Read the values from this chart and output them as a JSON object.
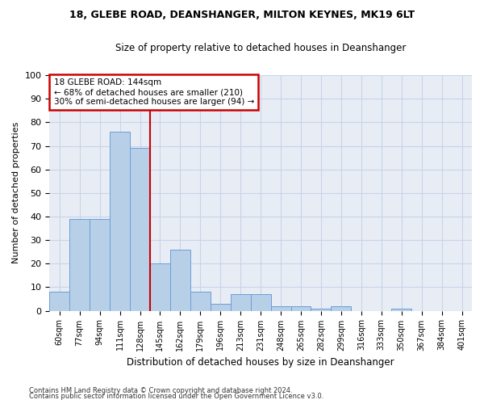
{
  "title1": "18, GLEBE ROAD, DEANSHANGER, MILTON KEYNES, MK19 6LT",
  "title2": "Size of property relative to detached houses in Deanshanger",
  "xlabel": "Distribution of detached houses by size in Deanshanger",
  "ylabel": "Number of detached properties",
  "categories": [
    "60sqm",
    "77sqm",
    "94sqm",
    "111sqm",
    "128sqm",
    "145sqm",
    "162sqm",
    "179sqm",
    "196sqm",
    "213sqm",
    "231sqm",
    "248sqm",
    "265sqm",
    "282sqm",
    "299sqm",
    "316sqm",
    "333sqm",
    "350sqm",
    "367sqm",
    "384sqm",
    "401sqm"
  ],
  "values": [
    8,
    39,
    39,
    76,
    69,
    20,
    26,
    8,
    3,
    7,
    7,
    2,
    2,
    1,
    2,
    0,
    0,
    1,
    0,
    0,
    0
  ],
  "bar_color": "#b8cfe8",
  "bar_edge_color": "#6a9fd8",
  "annotation_lines": [
    "18 GLEBE ROAD: 144sqm",
    "← 68% of detached houses are smaller (210)",
    "30% of semi-detached houses are larger (94) →"
  ],
  "annotation_box_color": "#ffffff",
  "annotation_box_edge": "#cc0000",
  "vline_color": "#cc0000",
  "vline_x": 4.5,
  "ylim": [
    0,
    100
  ],
  "yticks": [
    0,
    10,
    20,
    30,
    40,
    50,
    60,
    70,
    80,
    90,
    100
  ],
  "grid_color": "#c8d4e8",
  "bg_color": "#e8edf5",
  "footnote1": "Contains HM Land Registry data © Crown copyright and database right 2024.",
  "footnote2": "Contains public sector information licensed under the Open Government Licence v3.0."
}
